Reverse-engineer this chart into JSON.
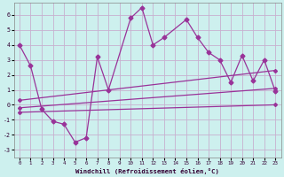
{
  "xlabel": "Windchill (Refroidissement éolien,°C)",
  "background_color": "#cdf0ee",
  "grid_color": "#c8b0d0",
  "line_color": "#993399",
  "xlim": [
    -0.5,
    23.5
  ],
  "ylim": [
    -3.5,
    6.8
  ],
  "yticks": [
    -3,
    -2,
    -1,
    0,
    1,
    2,
    3,
    4,
    5,
    6
  ],
  "xticks": [
    0,
    1,
    2,
    3,
    4,
    5,
    6,
    7,
    8,
    9,
    10,
    11,
    12,
    13,
    14,
    15,
    16,
    17,
    18,
    19,
    20,
    21,
    22,
    23
  ],
  "data_x": [
    0,
    1,
    2,
    3,
    4,
    5,
    6,
    7,
    8,
    10,
    11,
    12,
    13,
    15,
    16,
    17,
    18,
    19,
    20,
    21,
    22,
    23
  ],
  "data_y": [
    4.0,
    2.6,
    -0.3,
    -1.1,
    -1.3,
    -2.5,
    -2.2,
    3.2,
    1.0,
    5.8,
    6.5,
    4.0,
    4.5,
    5.7,
    4.5,
    3.5,
    3.0,
    1.5,
    3.3,
    1.6,
    3.0,
    0.9
  ],
  "line1_x": [
    0,
    23
  ],
  "line1_y": [
    0.3,
    2.3
  ],
  "line2_x": [
    0,
    23
  ],
  "line2_y": [
    -0.2,
    1.1
  ],
  "line3_x": [
    0,
    23
  ],
  "line3_y": [
    -0.5,
    0.0
  ],
  "figsize": [
    3.2,
    2.0
  ],
  "dpi": 100
}
